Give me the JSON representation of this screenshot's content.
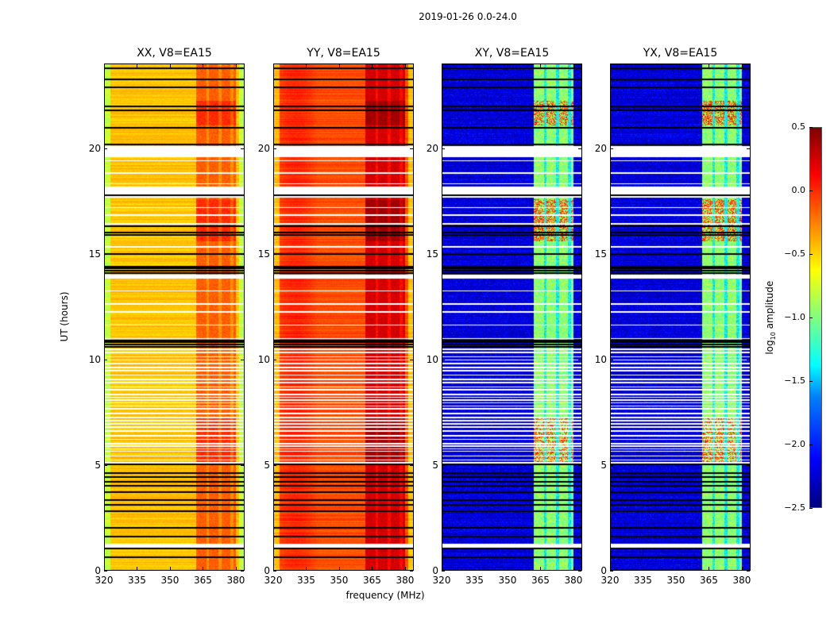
{
  "suptitle": "2019-01-26 0.0-24.0",
  "chart_data": {
    "type": "heatmap",
    "title": "2019-01-26 0.0-24.0",
    "xlabel": "frequency (MHz)",
    "ylabel": "UT (hours)",
    "xlim": [
      320,
      384
    ],
    "ylim": [
      0,
      24
    ],
    "x_ticks": [
      "320",
      "335",
      "350",
      "365",
      "380"
    ],
    "y_ticks": [
      "0",
      "5",
      "10",
      "15",
      "20"
    ],
    "colormap": "jet",
    "colorbar": {
      "label": "log10 amplitude",
      "range": [
        -2.5,
        0.5
      ],
      "ticks": [
        "0.5",
        "0.0",
        "−0.5",
        "−1.0",
        "−1.5",
        "−2.0",
        "−2.5"
      ]
    },
    "flagged_hours_white": [
      [
        19.6,
        20.15
      ],
      [
        17.7,
        18.2
      ],
      [
        1.05,
        1.25
      ],
      [
        13.9,
        14.05
      ]
    ],
    "black_line_hours": [
      23.8,
      23.3,
      22.9,
      22.0,
      21.8,
      21.0,
      20.2,
      17.8,
      16.3,
      16.0,
      15.9,
      15.0,
      14.4,
      14.3,
      14.2,
      14.1,
      10.9,
      10.8,
      10.7,
      10.6,
      5.0,
      4.6,
      4.4,
      4.2,
      4.0,
      3.7,
      3.3,
      3.1,
      2.8,
      2.0,
      1.6,
      1.0,
      0.6
    ],
    "rfi_band_mhz": [
      362,
      380
    ],
    "panels": [
      {
        "title": "XX, V8=EA15",
        "pol": "XX",
        "base_log_amp": -0.45,
        "rfi_log_amp": -0.15
      },
      {
        "title": "YY, V8=EA15",
        "pol": "YY",
        "base_log_amp": -0.1,
        "rfi_log_amp": 0.25
      },
      {
        "title": "XY, V8=EA15",
        "pol": "XY",
        "base_log_amp": -2.3,
        "rfi_log_amp": -0.95
      },
      {
        "title": "YX, V8=EA15",
        "pol": "YX",
        "base_log_amp": -2.3,
        "rfi_log_amp": -0.95
      }
    ]
  }
}
